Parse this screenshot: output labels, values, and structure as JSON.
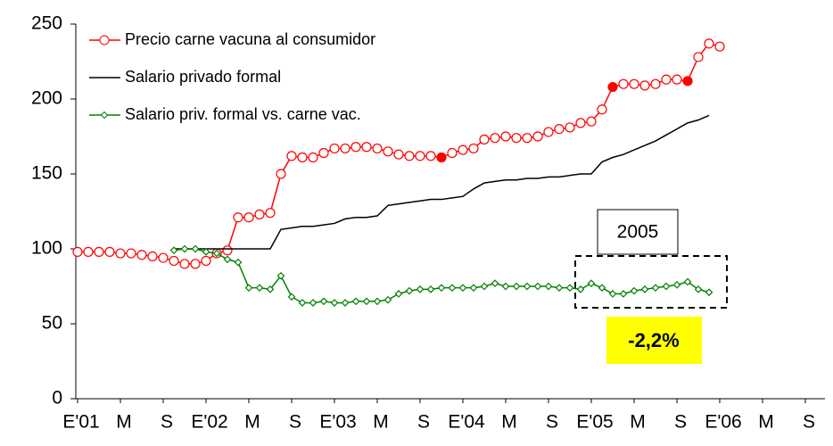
{
  "chart_data": {
    "type": "line",
    "categories": [
      "E'01",
      null,
      null,
      null,
      "M",
      null,
      null,
      null,
      "S",
      null,
      null,
      null,
      "E'02",
      null,
      null,
      null,
      "M",
      null,
      null,
      null,
      "S",
      null,
      null,
      null,
      "E'03",
      null,
      null,
      null,
      "M",
      null,
      null,
      null,
      "S",
      null,
      null,
      null,
      "E'04",
      null,
      null,
      null,
      "M",
      null,
      null,
      null,
      "S",
      null,
      null,
      null,
      "E'05",
      null,
      null,
      null,
      "M",
      null,
      null,
      null,
      "S",
      null,
      null,
      null,
      "E'06",
      null,
      null,
      null,
      "M",
      null,
      null,
      null,
      "S",
      null
    ],
    "series": [
      {
        "name": "Precio carne vacuna al consumidor",
        "color": "#ff0000",
        "marker": "circle",
        "filled_points": [
          34,
          50,
          57
        ],
        "values": [
          98,
          98,
          98,
          98,
          97,
          97,
          96,
          95,
          94,
          92,
          90,
          90,
          92,
          97,
          99,
          121,
          121,
          123,
          124,
          150,
          162,
          161,
          161,
          164,
          167,
          167,
          168,
          168,
          167,
          165,
          163,
          162,
          162,
          162,
          161,
          164,
          166,
          167,
          173,
          174,
          175,
          174,
          174,
          175,
          178,
          180,
          181,
          184,
          185,
          193,
          208,
          210,
          210,
          209,
          210,
          213,
          213,
          212,
          228,
          237,
          235,
          null,
          null,
          null,
          null,
          null,
          null,
          null,
          null,
          null
        ]
      },
      {
        "name": "Salario privado formal",
        "color": "#000000",
        "marker": "none",
        "values": [
          null,
          null,
          null,
          null,
          null,
          null,
          null,
          null,
          null,
          100,
          100,
          100,
          100,
          100,
          100,
          100,
          100,
          100,
          100,
          113,
          114,
          115,
          115,
          116,
          117,
          120,
          121,
          121,
          122,
          129,
          130,
          131,
          132,
          133,
          133,
          134,
          135,
          140,
          144,
          145,
          146,
          146,
          147,
          147,
          148,
          148,
          149,
          150,
          150,
          158,
          161,
          163,
          166,
          169,
          172,
          176,
          180,
          184,
          186,
          189,
          null,
          null,
          null,
          null,
          null,
          null,
          null,
          null,
          null,
          null
        ]
      },
      {
        "name": "Salario priv. formal vs. carne vac.",
        "color": "#008000",
        "marker": "diamond",
        "values": [
          null,
          null,
          null,
          null,
          null,
          null,
          null,
          null,
          null,
          99,
          100,
          100,
          98,
          97,
          93,
          91,
          74,
          74,
          73,
          82,
          68,
          64,
          64,
          65,
          64,
          64,
          65,
          65,
          65,
          66,
          70,
          72,
          73,
          73,
          74,
          74,
          74,
          74,
          75,
          77,
          75,
          75,
          75,
          75,
          75,
          74,
          74,
          73,
          77,
          74,
          70,
          70,
          72,
          73,
          74,
          75,
          76,
          78,
          73,
          71,
          null,
          null,
          null,
          null,
          null,
          null,
          null,
          null,
          null,
          null
        ]
      }
    ],
    "ylim": [
      0,
      250
    ],
    "yticks": [
      0,
      50,
      100,
      150,
      200,
      250
    ],
    "annotations": [
      "2005",
      "-2,2%"
    ]
  }
}
